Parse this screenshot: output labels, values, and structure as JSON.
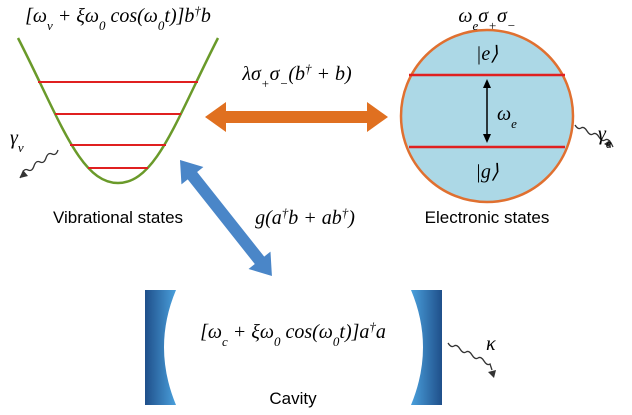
{
  "vibrational": {
    "hamiltonian": {
      "segments": [
        {
          "t": "[ω"
        },
        {
          "sub": "v"
        },
        {
          "t": " + ξω"
        },
        {
          "sub": "0"
        },
        {
          "t": " cos(ω"
        },
        {
          "sub": "0"
        },
        {
          "t": "t)]b"
        },
        {
          "sup": "†"
        },
        {
          "t": "b"
        }
      ]
    },
    "label": "Vibrational states",
    "decay": {
      "segments": [
        {
          "t": "γ"
        },
        {
          "sub": "v"
        }
      ]
    }
  },
  "electronic": {
    "hamiltonian": {
      "segments": [
        {
          "t": "ω"
        },
        {
          "sub": "e"
        },
        {
          "t": "σ"
        },
        {
          "sub": "+"
        },
        {
          "t": "σ"
        },
        {
          "sub": "−"
        }
      ]
    },
    "label": "Electronic states",
    "excited": {
      "segments": [
        {
          "t": "|e⟩"
        }
      ]
    },
    "ground": {
      "segments": [
        {
          "t": "|g⟩"
        }
      ]
    },
    "splitting": {
      "segments": [
        {
          "t": "ω"
        },
        {
          "sub": "e"
        }
      ]
    },
    "decay": {
      "segments": [
        {
          "t": "γ"
        },
        {
          "sub": "e"
        }
      ]
    }
  },
  "vib_electronic_coupling": {
    "segments": [
      {
        "t": "λσ"
      },
      {
        "sub": "+"
      },
      {
        "t": "σ"
      },
      {
        "sub": "−"
      },
      {
        "t": "(b"
      },
      {
        "sup": "†"
      },
      {
        "t": " + b)"
      }
    ]
  },
  "vib_cavity_coupling": {
    "segments": [
      {
        "t": "g(a"
      },
      {
        "sup": "†"
      },
      {
        "t": "b + ab"
      },
      {
        "sup": "†"
      },
      {
        "t": ")"
      }
    ]
  },
  "cavity": {
    "hamiltonian": {
      "segments": [
        {
          "t": "[ω"
        },
        {
          "sub": "c"
        },
        {
          "t": " + ξω"
        },
        {
          "sub": "0"
        },
        {
          "t": " cos(ω"
        },
        {
          "sub": "0"
        },
        {
          "t": "t)]a"
        },
        {
          "sup": "†"
        },
        {
          "t": "a"
        }
      ]
    },
    "label": "Cavity",
    "decay": {
      "segments": [
        {
          "t": "κ"
        }
      ]
    }
  }
}
